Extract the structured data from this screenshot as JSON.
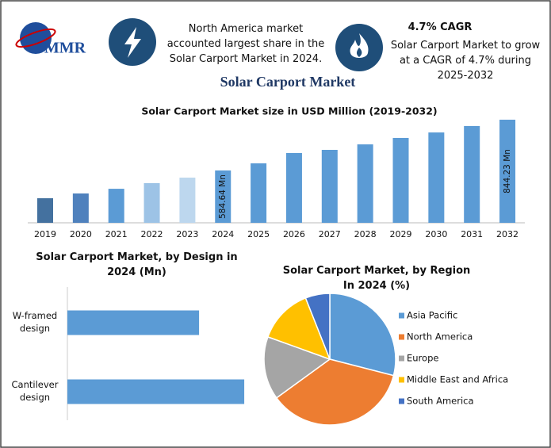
{
  "header": {
    "logo": "MMR",
    "share_note": "North America market accounted largest share in the Solar Carport Market in 2024.",
    "cagr_title": "4.7% CAGR",
    "cagr_note": "Solar Carport Market to grow at a CAGR of 4.7% during 2025-2032",
    "title": "Solar Carport Market"
  },
  "chart_data": [
    {
      "type": "bar",
      "title": "Solar Carport Market size in USD Million (2019-2032)",
      "categories": [
        "2019",
        "2020",
        "2021",
        "2022",
        "2023",
        "2024",
        "2025",
        "2026",
        "2027",
        "2028",
        "2029",
        "2030",
        "2031",
        "2032"
      ],
      "values": [
        442.6,
        467,
        491,
        520,
        548,
        584.64,
        621,
        674,
        690,
        718,
        751,
        779,
        812,
        844.23
      ],
      "value_labels": [
        null,
        null,
        null,
        null,
        null,
        "584.64 Mn",
        null,
        null,
        null,
        null,
        null,
        null,
        null,
        "844.23 Mn"
      ],
      "colors": [
        "#44719f",
        "#4f81bd",
        "#5b9bd5",
        "#9dc3e6",
        "#bdd7ee",
        "#5b9bd5",
        "#5b9bd5",
        "#5b9bd5",
        "#5b9bd5",
        "#5b9bd5",
        "#5b9bd5",
        "#5b9bd5",
        "#5b9bd5",
        "#5b9bd5"
      ],
      "ylim": [
        317,
        870
      ]
    },
    {
      "type": "hbar",
      "title": "Solar Carport Market, by Design in 2024 (Mn)",
      "categories": [
        "W-framed design",
        "Cantilever design"
      ],
      "values": [
        249.5,
        335.1
      ],
      "color": "#5b9bd5",
      "xlim": [
        0,
        350
      ]
    },
    {
      "type": "pie",
      "title": "Solar Carport Market, by Region In 2024 (%)",
      "categories": [
        "Asia Pacific",
        "North America",
        "Europe",
        "Middle East and Africa",
        "South America"
      ],
      "values": [
        29,
        36,
        15.5,
        13.5,
        6
      ],
      "colors": [
        "#5b9bd5",
        "#ed7d31",
        "#a5a5a5",
        "#ffc000",
        "#4472c4"
      ],
      "legend": "right"
    }
  ]
}
